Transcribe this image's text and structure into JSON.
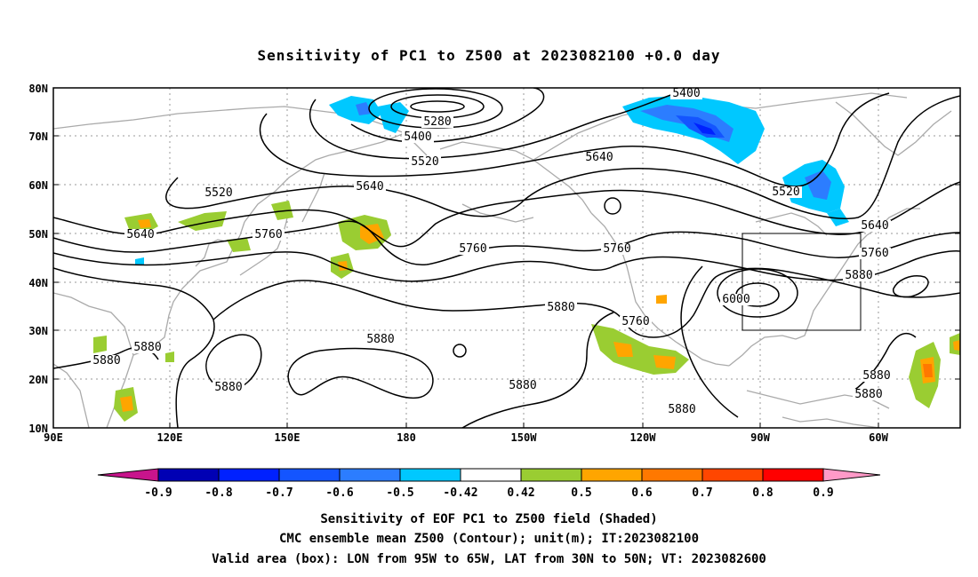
{
  "title": "Sensitivity of PC1 to Z500 at 2023082100 +0.0 day",
  "lat_labels": [
    "80N",
    "70N",
    "60N",
    "50N",
    "40N",
    "30N",
    "20N",
    "10N"
  ],
  "lon_labels": [
    "90E",
    "120E",
    "150E",
    "180",
    "150W",
    "120W",
    "90W",
    "60W"
  ],
  "contour_labels": [
    {
      "t": "5280"
    },
    {
      "t": "5400"
    },
    {
      "t": "5400"
    },
    {
      "t": "5520"
    },
    {
      "t": "5520"
    },
    {
      "t": "5520"
    },
    {
      "t": "5640"
    },
    {
      "t": "5640"
    },
    {
      "t": "5640"
    },
    {
      "t": "5640"
    },
    {
      "t": "5760"
    },
    {
      "t": "5760"
    },
    {
      "t": "5760"
    },
    {
      "t": "5760"
    },
    {
      "t": "5760"
    },
    {
      "t": "5880"
    },
    {
      "t": "5880"
    },
    {
      "t": "5880"
    },
    {
      "t": "5880"
    },
    {
      "t": "5880"
    },
    {
      "t": "5880"
    },
    {
      "t": "5880"
    },
    {
      "t": "5880"
    },
    {
      "t": "5880"
    },
    {
      "t": "5880"
    },
    {
      "t": "6000"
    }
  ],
  "colorbar": {
    "labels": [
      "-0.9",
      "-0.8",
      "-0.7",
      "-0.6",
      "-0.5",
      "-0.42",
      "0.42",
      "0.5",
      "0.6",
      "0.7",
      "0.8",
      "0.9"
    ],
    "colors": [
      "#0000b4",
      "#0021ff",
      "#1455ff",
      "#2c7dff",
      "#00c8ff",
      "#ffffff",
      "#9acd32",
      "#ffa500",
      "#ff7800",
      "#ff4600",
      "#ff0000"
    ],
    "low_color": "#c8148c",
    "high_color": "#ff9ac8"
  },
  "footer": {
    "line1": "Sensitivity of EOF PC1 to Z500 field (Shaded)",
    "line2": "CMC ensemble mean Z500 (Contour); unit(m); IT:2023082100",
    "line3": "Valid area (box): LON from 95W to 65W, LAT from 30N to 50N; VT: 2023082600"
  },
  "valid_box": {
    "lon_min": -95,
    "lon_max": -65,
    "lat_min": 30,
    "lat_max": 50
  }
}
